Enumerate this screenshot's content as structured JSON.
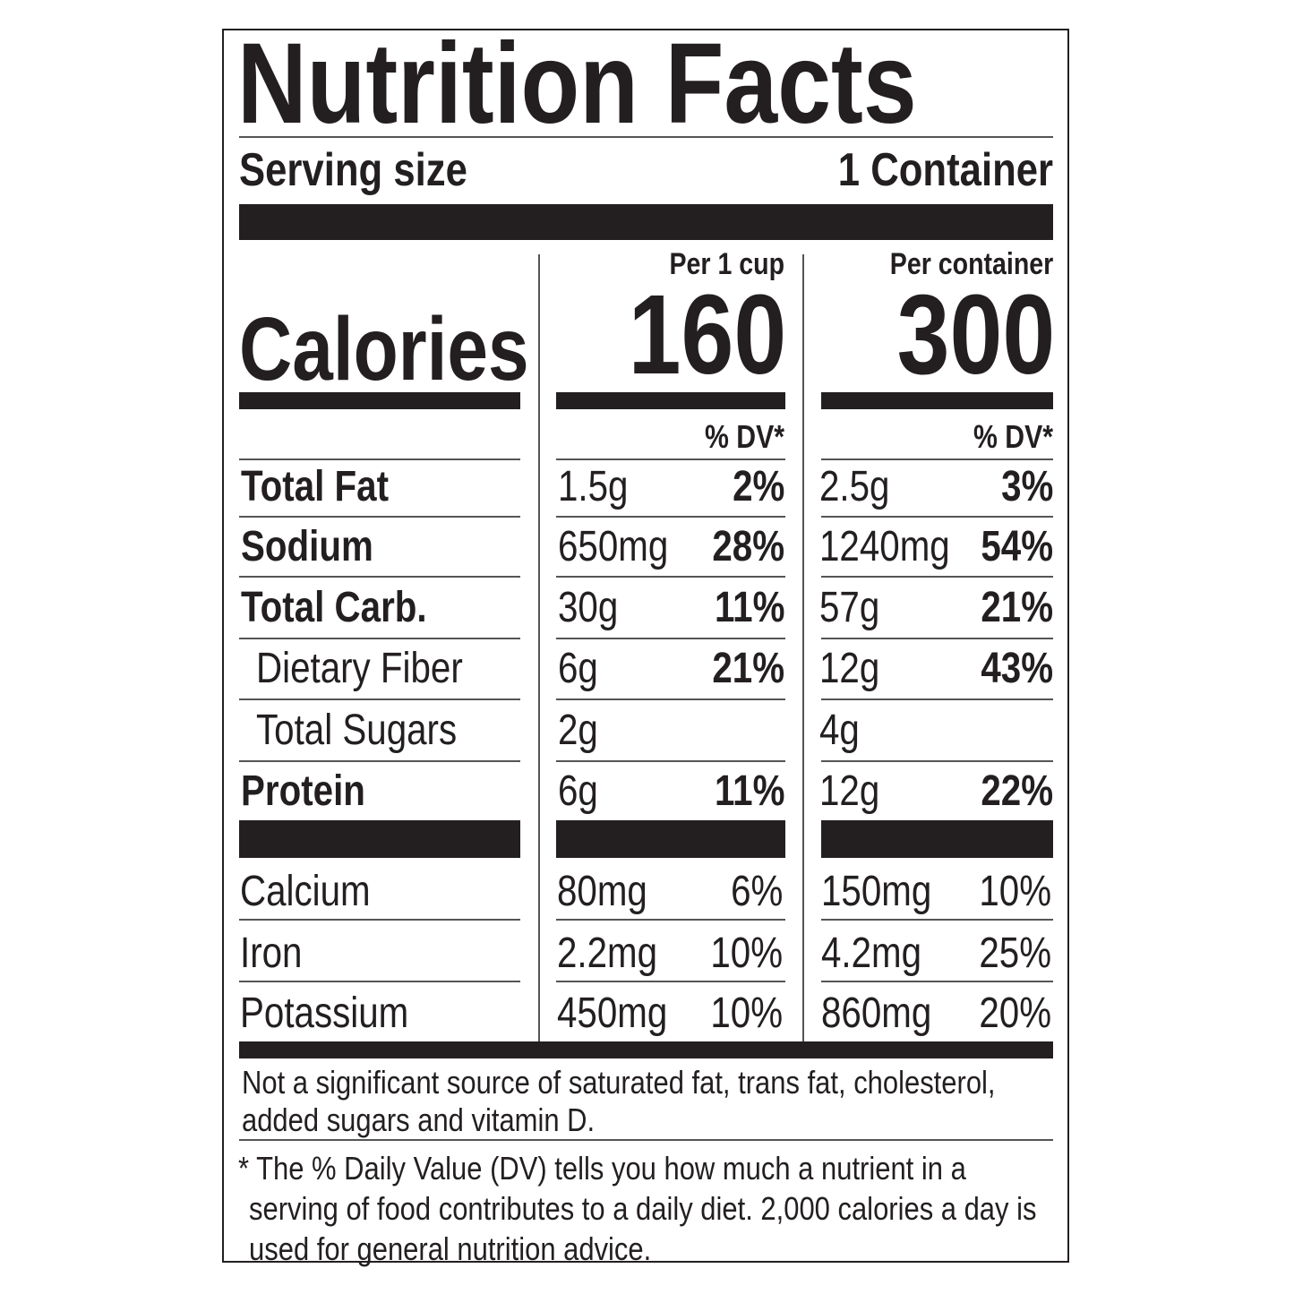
{
  "title": "Nutrition Facts",
  "serving": {
    "label": "Serving size",
    "value": "1 Container"
  },
  "columns": [
    {
      "header": "Per 1 cup",
      "calories": "160",
      "dv_header": "% DV*"
    },
    {
      "header": "Per container",
      "calories": "300",
      "dv_header": "% DV*"
    }
  ],
  "calories_label": "Calories",
  "nutrients": [
    {
      "name": "Total Fat",
      "bold": true,
      "indent": false,
      "cup": {
        "amount": "1.5g",
        "dv": "2%"
      },
      "container": {
        "amount": "2.5g",
        "dv": "3%"
      }
    },
    {
      "name": "Sodium",
      "bold": true,
      "indent": false,
      "cup": {
        "amount": "650mg",
        "dv": "28%"
      },
      "container": {
        "amount": "1240mg",
        "dv": "54%"
      }
    },
    {
      "name": "Total Carb.",
      "bold": true,
      "indent": false,
      "cup": {
        "amount": "30g",
        "dv": "11%"
      },
      "container": {
        "amount": "57g",
        "dv": "21%"
      }
    },
    {
      "name": "Dietary Fiber",
      "bold": false,
      "indent": true,
      "cup": {
        "amount": "6g",
        "dv": "21%"
      },
      "container": {
        "amount": "12g",
        "dv": "43%"
      }
    },
    {
      "name": "Total Sugars",
      "bold": false,
      "indent": true,
      "cup": {
        "amount": "2g",
        "dv": ""
      },
      "container": {
        "amount": "4g",
        "dv": ""
      }
    },
    {
      "name": "Protein",
      "bold": true,
      "indent": false,
      "cup": {
        "amount": "6g",
        "dv": "11%"
      },
      "container": {
        "amount": "12g",
        "dv": "22%"
      }
    }
  ],
  "minerals": [
    {
      "name": "Calcium",
      "cup": {
        "amount": "80mg",
        "dv": "6%"
      },
      "container": {
        "amount": "150mg",
        "dv": "10%"
      }
    },
    {
      "name": "Iron",
      "cup": {
        "amount": "2.2mg",
        "dv": "10%"
      },
      "container": {
        "amount": "4.2mg",
        "dv": "25%"
      }
    },
    {
      "name": "Potassium",
      "cup": {
        "amount": "450mg",
        "dv": "10%"
      },
      "container": {
        "amount": "860mg",
        "dv": "20%"
      }
    }
  ],
  "footnote_1": "Not a significant source of saturated fat, trans fat, cholesterol, added sugars and vitamin D.",
  "footnote_2": "* The % Daily Value (DV) tells you how much a nutrient in a serving of food contributes to a daily diet. 2,000 calories a day is used for general nutrition advice."
}
